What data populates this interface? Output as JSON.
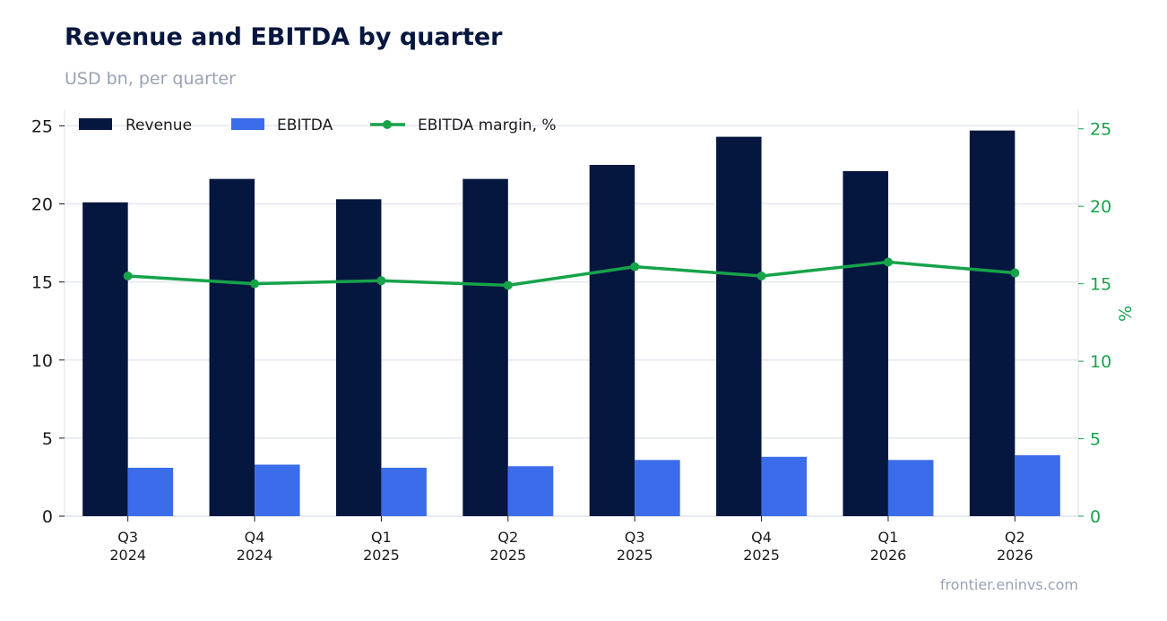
{
  "header": {
    "title": "Revenue and EBITDA by quarter",
    "subtitle": "USD bn, per quarter"
  },
  "footer": {
    "source": "frontier.eninvs.com"
  },
  "colors": {
    "revenue": "#05163f",
    "ebitda": "#3b6ce9",
    "margin": "#16a34a",
    "grid": "#e3e8f0"
  },
  "chart_data": {
    "type": "bar",
    "title": "Revenue and EBITDA by quarter",
    "subtitle": "USD bn, per quarter",
    "categories": [
      [
        "Q3",
        "2024"
      ],
      [
        "Q4",
        "2024"
      ],
      [
        "Q1",
        "2025"
      ],
      [
        "Q2",
        "2025"
      ],
      [
        "Q3",
        "2025"
      ],
      [
        "Q4",
        "2025"
      ],
      [
        "Q1",
        "2026"
      ],
      [
        "Q2",
        "2026"
      ]
    ],
    "series": [
      {
        "name": "Revenue",
        "type": "bar",
        "axis": "left",
        "values": [
          20.1,
          21.6,
          20.3,
          21.6,
          22.5,
          24.3,
          22.1,
          24.7
        ]
      },
      {
        "name": "EBITDA",
        "type": "bar",
        "axis": "left",
        "values": [
          3.1,
          3.3,
          3.1,
          3.2,
          3.6,
          3.8,
          3.6,
          3.9
        ]
      },
      {
        "name": "EBITDA margin, %",
        "type": "line",
        "axis": "right",
        "values": [
          15.5,
          15.0,
          15.2,
          14.9,
          16.1,
          15.5,
          16.4,
          15.7
        ]
      }
    ],
    "ylim": [
      0,
      26
    ],
    "yticks": [
      0,
      5,
      10,
      15,
      20,
      25
    ],
    "y2label": "%",
    "y2lim": [
      0,
      26.2
    ],
    "y2ticks": [
      0,
      5,
      10,
      15,
      20,
      25
    ],
    "grid": true,
    "legend_position": "top-left"
  }
}
